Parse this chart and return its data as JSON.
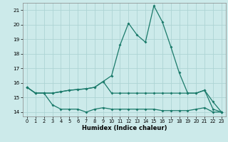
{
  "xlabel": "Humidex (Indice chaleur)",
  "xlim": [
    -0.5,
    23.5
  ],
  "ylim": [
    13.7,
    21.5
  ],
  "xticks": [
    0,
    1,
    2,
    3,
    4,
    5,
    6,
    7,
    8,
    9,
    10,
    11,
    12,
    13,
    14,
    15,
    16,
    17,
    18,
    19,
    20,
    21,
    22,
    23
  ],
  "yticks": [
    14,
    15,
    16,
    17,
    18,
    19,
    20,
    21
  ],
  "background_color": "#cceaea",
  "grid_color": "#add4d4",
  "line_color": "#1a7a6a",
  "line1_y": [
    15.7,
    15.3,
    15.3,
    15.3,
    15.4,
    15.5,
    15.55,
    15.6,
    15.7,
    16.1,
    16.5,
    18.6,
    20.1,
    19.3,
    18.8,
    21.3,
    20.2,
    18.5,
    16.7,
    15.3,
    15.3,
    15.5,
    14.7,
    14.0
  ],
  "line2_y": [
    15.7,
    15.3,
    15.3,
    15.3,
    15.4,
    15.5,
    15.55,
    15.6,
    15.7,
    16.1,
    15.3,
    15.3,
    15.3,
    15.3,
    15.3,
    15.3,
    15.3,
    15.3,
    15.3,
    15.3,
    15.3,
    15.5,
    14.2,
    14.0
  ],
  "line3_y": [
    15.7,
    15.3,
    15.3,
    14.5,
    14.2,
    14.2,
    14.2,
    14.0,
    14.2,
    14.3,
    14.2,
    14.2,
    14.2,
    14.2,
    14.2,
    14.2,
    14.1,
    14.1,
    14.1,
    14.1,
    14.2,
    14.3,
    14.0,
    14.0
  ]
}
